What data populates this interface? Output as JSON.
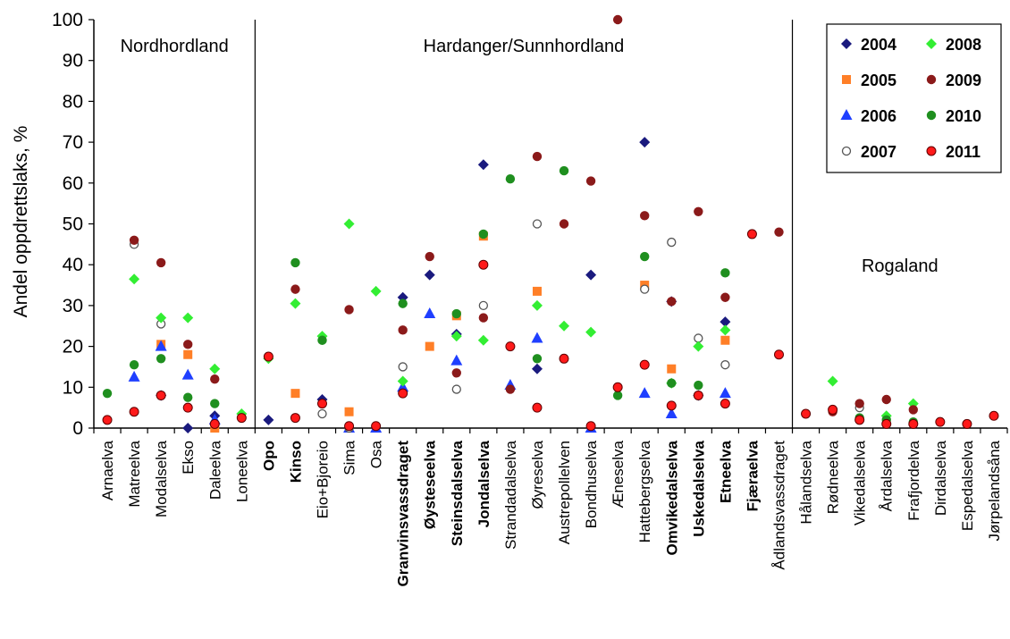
{
  "chart_data": {
    "type": "scatter",
    "ylabel": "Andel oppdrettslaks, %",
    "ylim": [
      0,
      100
    ],
    "yticks": [
      0,
      10,
      20,
      30,
      40,
      50,
      60,
      70,
      80,
      90,
      100
    ],
    "legend_position": "top-right",
    "categories": [
      "Arnaelva",
      "Matreelva",
      "Modalselva",
      "Ekso",
      "Daleelva",
      "Loneelva",
      "Opo",
      "Kinso",
      "Eio+Bjoreio",
      "Sima",
      "Osa",
      "Granvinsvassdraget",
      "Øysteseelva",
      "Steinsdalselva",
      "Jondalselva",
      "Strandadalselva",
      "Øyreselva",
      "Austrepollelven",
      "Bondhuselva",
      "Æneselva",
      "Hattebergselva",
      "Omvikedalselva",
      "Uskedalselva",
      "Etneelva",
      "Fjæraelva",
      "Ådlandsvassdraget",
      "Hålandselva",
      "Rødneelva",
      "Vikedalselva",
      "Årdalselva",
      "Frafjordelva",
      "Dirdalselva",
      "Espedalselva",
      "Jørpelandsåna"
    ],
    "bold_categories": [
      "Opo",
      "Kinso",
      "Granvinsvassdraget",
      "Øysteseelva",
      "Steinsdalselva",
      "Jondalselva",
      "Omvikedalselva",
      "Uskedalselva",
      "Etneelva",
      "Fjæraelva"
    ],
    "regions": [
      {
        "name": "Nordhordland",
        "from": 0,
        "to": 5
      },
      {
        "name": "Hardanger/Sunnhordland",
        "from": 6,
        "to": 25
      },
      {
        "name": "Rogaland",
        "from": 26,
        "to": 33
      }
    ],
    "series": [
      {
        "name": "2004",
        "marker": "diamond",
        "color": "#1a1a7e",
        "values": [
          null,
          null,
          8,
          0,
          3,
          null,
          2,
          null,
          7,
          null,
          null,
          32,
          37.5,
          23,
          64.5,
          null,
          14.5,
          null,
          37.5,
          null,
          70,
          31,
          8,
          26,
          null,
          null,
          null,
          null,
          null,
          null,
          null,
          null,
          null,
          null
        ]
      },
      {
        "name": "2005",
        "marker": "square",
        "color": "#ff7f27",
        "values": [
          null,
          null,
          20.5,
          18,
          0,
          null,
          null,
          8.5,
          null,
          4,
          null,
          null,
          20,
          27.5,
          47,
          null,
          33.5,
          null,
          null,
          null,
          35,
          14.5,
          null,
          21.5,
          null,
          null,
          null,
          null,
          null,
          null,
          null,
          null,
          null,
          null
        ]
      },
      {
        "name": "2006",
        "marker": "triangle",
        "color": "#1f3fff",
        "values": [
          null,
          12.5,
          20,
          13,
          2,
          null,
          null,
          null,
          null,
          0,
          0,
          10,
          28,
          16.5,
          null,
          10.5,
          22,
          null,
          0,
          null,
          8.5,
          3.5,
          null,
          8.5,
          null,
          null,
          null,
          null,
          null,
          null,
          null,
          null,
          null,
          null
        ]
      },
      {
        "name": "2007",
        "marker": "open-circle",
        "color": "#555555",
        "values": [
          null,
          45,
          25.5,
          null,
          null,
          null,
          null,
          null,
          3.5,
          0,
          null,
          15,
          null,
          9.5,
          30,
          null,
          50,
          null,
          null,
          null,
          34,
          45.5,
          22,
          15.5,
          null,
          null,
          null,
          null,
          5,
          null,
          null,
          null,
          null,
          null
        ]
      },
      {
        "name": "2008",
        "marker": "diamond",
        "color": "#33ee33",
        "values": [
          null,
          36.5,
          27,
          27,
          14.5,
          3.5,
          17,
          30.5,
          22.5,
          50,
          33.5,
          11.5,
          null,
          22.5,
          21.5,
          null,
          30,
          25,
          23.5,
          null,
          null,
          11,
          20,
          24,
          null,
          null,
          null,
          11.5,
          null,
          3,
          6,
          null,
          null,
          null
        ]
      },
      {
        "name": "2009",
        "marker": "circle",
        "color": "#8b1a1a",
        "values": [
          null,
          46,
          40.5,
          20.5,
          12,
          null,
          null,
          34,
          6,
          29,
          null,
          24,
          42,
          13.5,
          27,
          9.5,
          66.5,
          50,
          60.5,
          100,
          52,
          31,
          53,
          32,
          null,
          48,
          null,
          4,
          6,
          7,
          4.5,
          null,
          null,
          null
        ]
      },
      {
        "name": "2010",
        "marker": "circle",
        "color": "#1f8f1f",
        "values": [
          8.5,
          15.5,
          17,
          7.5,
          6,
          null,
          null,
          40.5,
          21.5,
          null,
          null,
          30.5,
          null,
          28,
          47.5,
          61,
          17,
          63,
          null,
          8,
          42,
          11,
          10.5,
          38,
          null,
          null,
          null,
          null,
          2.5,
          2,
          1.5,
          null,
          null,
          null
        ]
      },
      {
        "name": "2011",
        "marker": "red-circle",
        "color": "#ff1a1a",
        "values": [
          2,
          4,
          8,
          5,
          1,
          2.5,
          17.5,
          2.5,
          6,
          0.5,
          0.5,
          8.5,
          null,
          null,
          40,
          20,
          5,
          17,
          0.5,
          10,
          15.5,
          5.5,
          8,
          6,
          47.5,
          18,
          3.5,
          4.5,
          2,
          1,
          1,
          1.5,
          1,
          3
        ]
      }
    ]
  }
}
